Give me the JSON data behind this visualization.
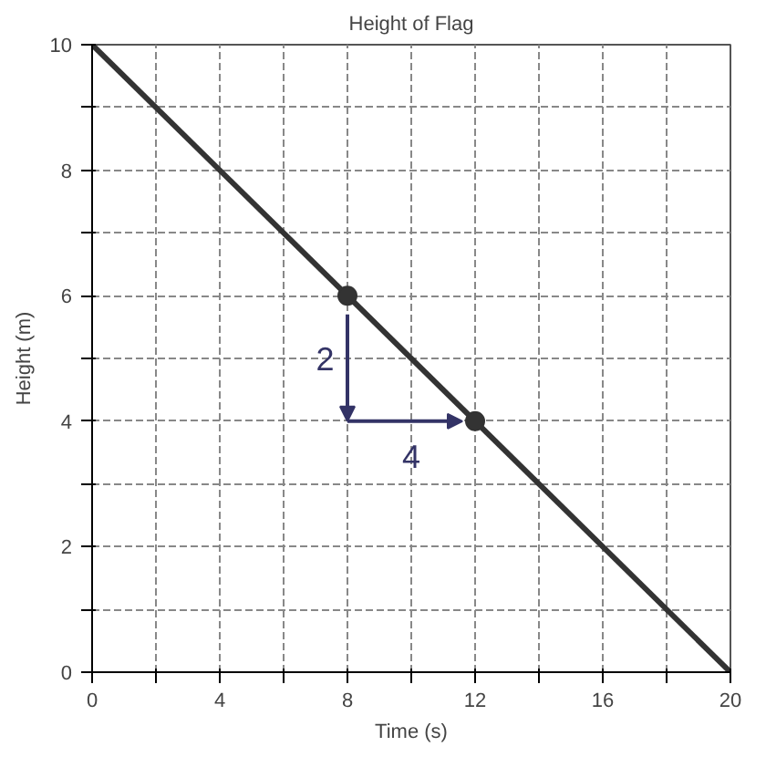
{
  "chart_data": {
    "type": "line",
    "title": "Height of Flag",
    "xlabel": "Time (s)",
    "ylabel": "Height (m)",
    "xlim": [
      0,
      20
    ],
    "ylim": [
      0,
      10
    ],
    "xticks": [
      0,
      {
        "value": 2,
        "label": null
      },
      4,
      {
        "value": 6,
        "label": null
      },
      8,
      {
        "value": 10,
        "label": null
      },
      12,
      {
        "value": 14,
        "label": null
      },
      16,
      {
        "value": 18,
        "label": null
      },
      20
    ],
    "yticks": [
      0,
      {
        "value": 1,
        "label": null
      },
      2,
      {
        "value": 3,
        "label": null
      },
      4,
      {
        "value": 5,
        "label": null
      },
      6,
      {
        "value": 7,
        "label": null
      },
      8,
      {
        "value": 9,
        "label": null
      },
      10
    ],
    "grid": true,
    "series": [
      {
        "color": "#333333",
        "x": [
          0,
          20
        ],
        "values": [
          10,
          0
        ]
      },
      {
        "type": "scatter",
        "color": "#333333",
        "x": [
          8,
          12
        ],
        "values": [
          6,
          4
        ],
        "marker": "circle"
      }
    ],
    "annotations": [
      "2",
      "4"
    ]
  }
}
